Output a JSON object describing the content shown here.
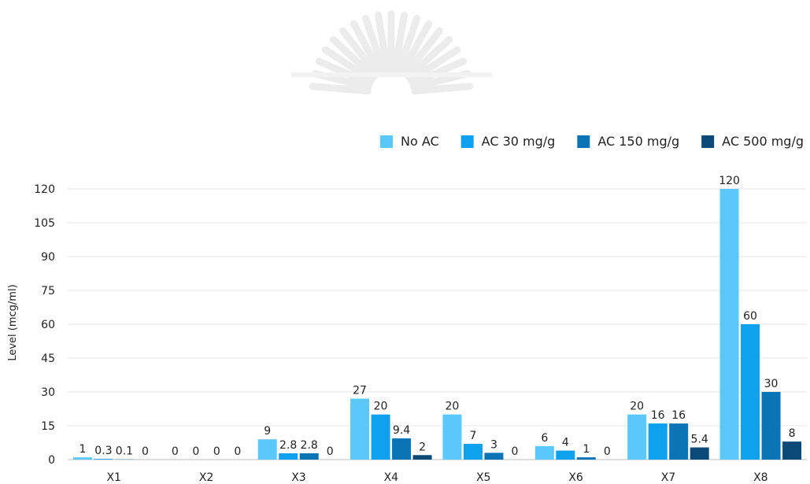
{
  "chart_data": {
    "type": "bar",
    "title": "",
    "xlabel": "",
    "ylabel": "Level (mcg/ml)",
    "ylim": [
      0,
      120
    ],
    "yticks": [
      0,
      15,
      30,
      45,
      60,
      75,
      90,
      105,
      120
    ],
    "grid": true,
    "legend_position": "top-right",
    "categories": [
      "X1",
      "X2",
      "X3",
      "X4",
      "X5",
      "X6",
      "X7",
      "X8"
    ],
    "series": [
      {
        "name": "No AC",
        "color": "#5ac8fa",
        "values": [
          1,
          0,
          9,
          27,
          20,
          6,
          20,
          120
        ],
        "labels": [
          "1",
          "0",
          "9",
          "27",
          "20",
          "6",
          "20",
          "120"
        ]
      },
      {
        "name": "AC 30 mg/g",
        "color": "#0fa0ee",
        "values": [
          0.3,
          0,
          2.8,
          20,
          7,
          4,
          16,
          60
        ],
        "labels": [
          "0.3",
          "0",
          "2.8",
          "20",
          "7",
          "4",
          "16",
          "60"
        ]
      },
      {
        "name": "AC 150 mg/g",
        "color": "#0b74b6",
        "values": [
          0.1,
          0,
          2.8,
          9.4,
          3,
          1,
          16,
          30
        ],
        "labels": [
          "0.1",
          "0",
          "2.8",
          "9.4",
          "3",
          "1",
          "16",
          "30"
        ]
      },
      {
        "name": "AC 500 mg/g",
        "color": "#0b4a78",
        "values": [
          0,
          0,
          0,
          2,
          0,
          0,
          5.4,
          8
        ],
        "labels": [
          "0",
          "0",
          "0",
          "2",
          "0",
          "0",
          "5.4",
          "8"
        ]
      }
    ]
  },
  "watermark_color": "#ececec"
}
